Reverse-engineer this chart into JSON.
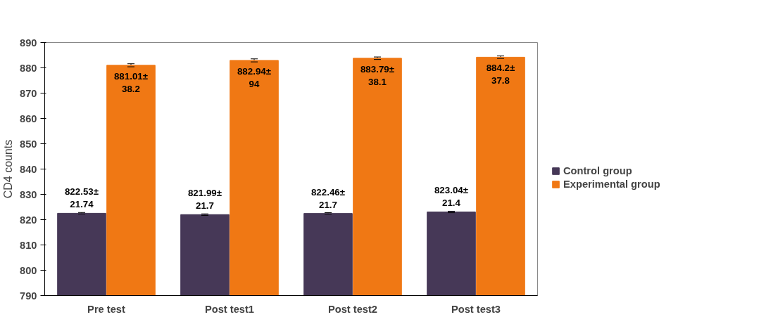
{
  "chart_data": {
    "type": "bar",
    "ylabel": "CD4 counts",
    "categories": [
      "Pre test",
      "Post test1",
      "Post test2",
      "Post test3"
    ],
    "series": [
      {
        "name": "Control group",
        "color": "#463857",
        "values": [
          822.53,
          821.99,
          822.46,
          823.04
        ],
        "errors": [
          0.3,
          0.3,
          0.3,
          0.3
        ],
        "value_labels": [
          "822.53±\n21.74",
          "821.99±\n21.7",
          "822.46±\n21.7",
          "823.04±\n21.4"
        ]
      },
      {
        "name": "Experimental group",
        "color": "#f07814",
        "values": [
          881.01,
          882.94,
          883.79,
          884.2
        ],
        "errors": [
          0.6,
          0.6,
          0.5,
          0.5
        ],
        "value_labels": [
          "881.01±\n38.2",
          "882.94±\n94",
          "883.79±\n38.1",
          "884.2±\n37.8"
        ]
      }
    ],
    "ylim": [
      790,
      890
    ],
    "yticks": [
      790,
      800,
      810,
      820,
      830,
      840,
      850,
      860,
      870,
      880,
      890
    ],
    "grid": false,
    "legend": "right"
  }
}
